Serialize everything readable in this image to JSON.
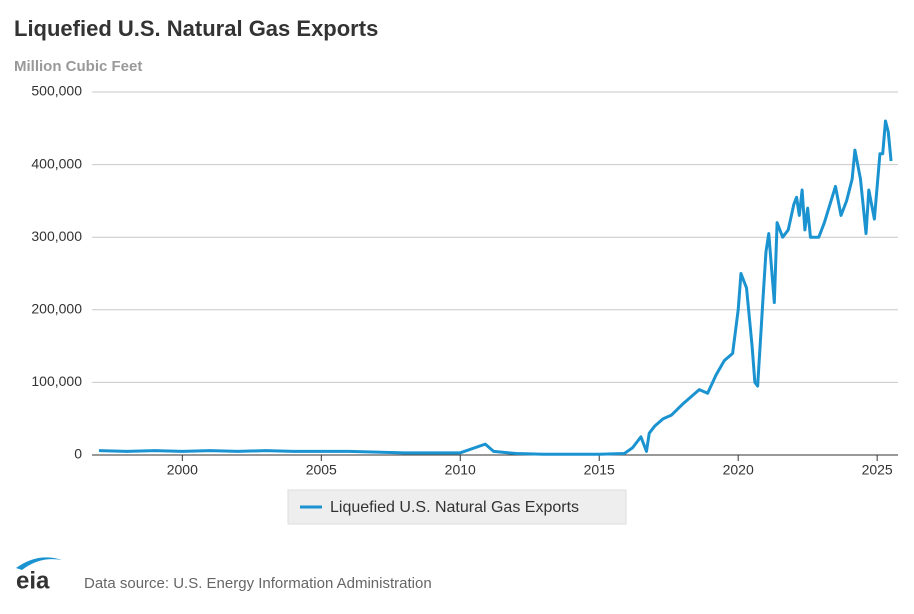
{
  "chart_data": {
    "type": "line",
    "title": "Liquefied U.S. Natural Gas Exports",
    "subtitle": "Million Cubic Feet",
    "source": "Data source: U.S. Energy Information Administration",
    "logo": "eia",
    "grid": true,
    "xlim": [
      1996.75,
      2025.75
    ],
    "xticks": [
      2000,
      2005,
      2010,
      2015,
      2020,
      2025
    ],
    "ylim": [
      0,
      500000
    ],
    "yticks": [
      0,
      {
        "value": 100000,
        "label": "100,000"
      },
      {
        "value": 200000,
        "label": "200,000"
      },
      {
        "value": 300000,
        "label": "300,000"
      },
      {
        "value": 400000,
        "label": "400,000"
      },
      {
        "value": 500000,
        "label": "500,000"
      }
    ],
    "x": [
      1997.0,
      1998.0,
      1999.0,
      2000.0,
      2001.0,
      2002.0,
      2003.0,
      2004.0,
      2005.0,
      2006.0,
      2007.0,
      2008.0,
      2009.0,
      2010.0,
      2010.9,
      2011.2,
      2012.0,
      2013.0,
      2014.0,
      2015.0,
      2015.9,
      2016.2,
      2016.5,
      2016.7,
      2016.8,
      2017.0,
      2017.3,
      2017.6,
      2018.0,
      2018.3,
      2018.6,
      2018.9,
      2019.2,
      2019.5,
      2019.8,
      2020.0,
      2020.1,
      2020.3,
      2020.5,
      2020.6,
      2020.7,
      2020.9,
      2021.0,
      2021.1,
      2021.3,
      2021.4,
      2021.6,
      2021.8,
      2022.0,
      2022.1,
      2022.2,
      2022.3,
      2022.4,
      2022.5,
      2022.6,
      2022.9,
      2023.1,
      2023.3,
      2023.5,
      2023.7,
      2023.9,
      2024.1,
      2024.2,
      2024.4,
      2024.6,
      2024.7,
      2024.9,
      2025.0,
      2025.1,
      2025.2,
      2025.3,
      2025.4,
      2025.5
    ],
    "series": [
      {
        "name": "Liquefied U.S. Natural Gas Exports",
        "color": "#1a93d0",
        "values": [
          6000,
          5000,
          6000,
          5000,
          6000,
          5000,
          6000,
          5000,
          5000,
          5000,
          4000,
          3000,
          3000,
          3000,
          15000,
          5000,
          2000,
          1000,
          1000,
          1000,
          2000,
          10000,
          25000,
          5000,
          30000,
          40000,
          50000,
          55000,
          70000,
          80000,
          90000,
          85000,
          110000,
          130000,
          140000,
          200000,
          250000,
          230000,
          150000,
          100000,
          95000,
          220000,
          280000,
          305000,
          210000,
          320000,
          300000,
          310000,
          345000,
          355000,
          330000,
          365000,
          310000,
          340000,
          300000,
          300000,
          320000,
          345000,
          370000,
          330000,
          350000,
          380000,
          420000,
          380000,
          305000,
          365000,
          325000,
          370000,
          415000,
          415000,
          460000,
          445000,
          405000
        ]
      }
    ]
  }
}
